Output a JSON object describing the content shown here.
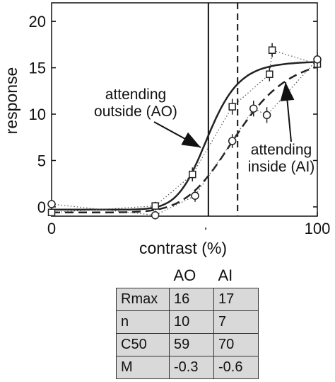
{
  "chart_data": {
    "type": "line",
    "xlabel": "contrast (%)",
    "ylabel": "response",
    "xlim": [
      0,
      100
    ],
    "ylim": [
      -1,
      22
    ],
    "x_tick_labels": [
      "0",
      "100"
    ],
    "y_ticks": [
      0,
      5,
      10,
      15,
      20
    ],
    "y_tick_labels": [
      "0",
      "5",
      "10",
      "15",
      "20"
    ],
    "series": [
      {
        "name": "attending outside (AO)",
        "marker": "square",
        "line": "solid",
        "points": [
          {
            "x": 0,
            "y": -0.6,
            "err": 0.3
          },
          {
            "x": 39,
            "y": 0.1,
            "err": 0.3
          },
          {
            "x": 53,
            "y": 3.5,
            "err": 0.6
          },
          {
            "x": 68,
            "y": 10.8,
            "err": 0.7
          },
          {
            "x": 83,
            "y": 16.9,
            "err": 0.6
          },
          {
            "x": 82,
            "y": 14.3,
            "err": 0.6
          },
          {
            "x": 100,
            "y": 15.4,
            "err": 0.6
          }
        ]
      },
      {
        "name": "attending inside (AI)",
        "marker": "circle",
        "line": "dashed",
        "points": [
          {
            "x": 0,
            "y": 0.3,
            "err": 0.3
          },
          {
            "x": 39,
            "y": -0.9,
            "err": 0.3
          },
          {
            "x": 54,
            "y": 1.2,
            "err": 0.5
          },
          {
            "x": 68,
            "y": 7.1,
            "err": 0.6
          },
          {
            "x": 76,
            "y": 10.6,
            "err": 0.7
          },
          {
            "x": 81,
            "y": 9.9,
            "err": 0.7
          },
          {
            "x": 100,
            "y": 15.9,
            "err": 0.7
          }
        ]
      }
    ],
    "vertical_lines": [
      {
        "x": 59,
        "style": "solid"
      },
      {
        "x": 70,
        "style": "dashed"
      }
    ],
    "annotations": [
      {
        "lines": [
          "attending",
          "outside (AO)"
        ]
      },
      {
        "lines": [
          "attending",
          "inside (AI)"
        ]
      }
    ]
  },
  "table": {
    "columns": [
      "AO",
      "AI"
    ],
    "rows": [
      {
        "label": "Rmax",
        "AO": "16",
        "AI": "17"
      },
      {
        "label": "n",
        "AO": "10",
        "AI": "7"
      },
      {
        "label": "C50",
        "AO": "59",
        "AI": "70"
      },
      {
        "label": "M",
        "AO": "-0.3",
        "AI": "-0.6"
      }
    ]
  },
  "fit_params": {
    "AO": {
      "Rmax": 16,
      "n": 10,
      "C50": 59,
      "M": -0.3
    },
    "AI": {
      "Rmax": 17,
      "n": 7,
      "C50": 70,
      "M": -0.6
    }
  }
}
